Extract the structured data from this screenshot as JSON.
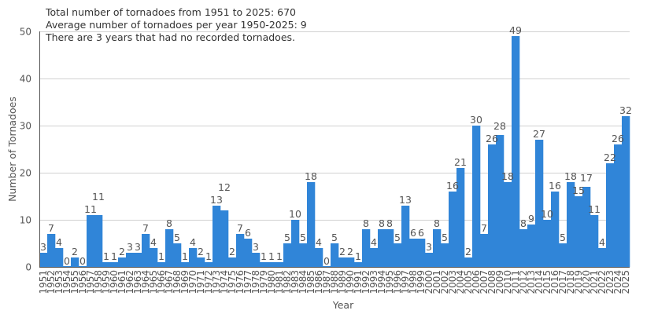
{
  "chart_data": {
    "type": "bar",
    "title": "",
    "annotations": [
      "Total number of tornadoes from 1951 to 2025: 670",
      "Average number of tornadoes per year 1950-2025: 9",
      "There are 3 years that had no recorded tornadoes."
    ],
    "xlabel": "Year",
    "ylabel": "Number of Tornadoes",
    "ylim": [
      0,
      50
    ],
    "yticks": [
      0,
      10,
      20,
      30,
      40,
      50
    ],
    "grid": true,
    "bar_color": "#3085d8",
    "categories": [
      "1951",
      "1952",
      "1953",
      "1954",
      "1955",
      "1956",
      "1957",
      "1958",
      "1959",
      "1960",
      "1961",
      "1962",
      "1963",
      "1964",
      "1965",
      "1966",
      "1967",
      "1968",
      "1969",
      "1970",
      "1971",
      "1972",
      "1973",
      "1974",
      "1975",
      "1976",
      "1977",
      "1978",
      "1979",
      "1980",
      "1981",
      "1982",
      "1983",
      "1984",
      "1985",
      "1986",
      "1987",
      "1988",
      "1989",
      "1990",
      "1991",
      "1992",
      "1993",
      "1994",
      "1995",
      "1996",
      "1997",
      "1998",
      "1999",
      "2000",
      "2001",
      "2002",
      "2003",
      "2004",
      "2005",
      "2006",
      "2007",
      "2008",
      "2009",
      "2010",
      "2011",
      "2012",
      "2013",
      "2014",
      "2015",
      "2016",
      "2017",
      "2018",
      "2019",
      "2020",
      "2021",
      "2022",
      "2023",
      "2024",
      "2025"
    ],
    "values": [
      3,
      7,
      4,
      0,
      2,
      0,
      11,
      11,
      1,
      1,
      2,
      3,
      3,
      7,
      4,
      1,
      8,
      5,
      1,
      4,
      2,
      1,
      13,
      12,
      2,
      7,
      6,
      3,
      1,
      1,
      1,
      5,
      10,
      5,
      18,
      4,
      0,
      5,
      2,
      2,
      1,
      8,
      4,
      8,
      8,
      5,
      13,
      6,
      6,
      3,
      8,
      5,
      16,
      21,
      2,
      30,
      7,
      26,
      28,
      18,
      49,
      8,
      9,
      27,
      10,
      16,
      5,
      18,
      15,
      17,
      11,
      4,
      22,
      26,
      32
    ]
  }
}
